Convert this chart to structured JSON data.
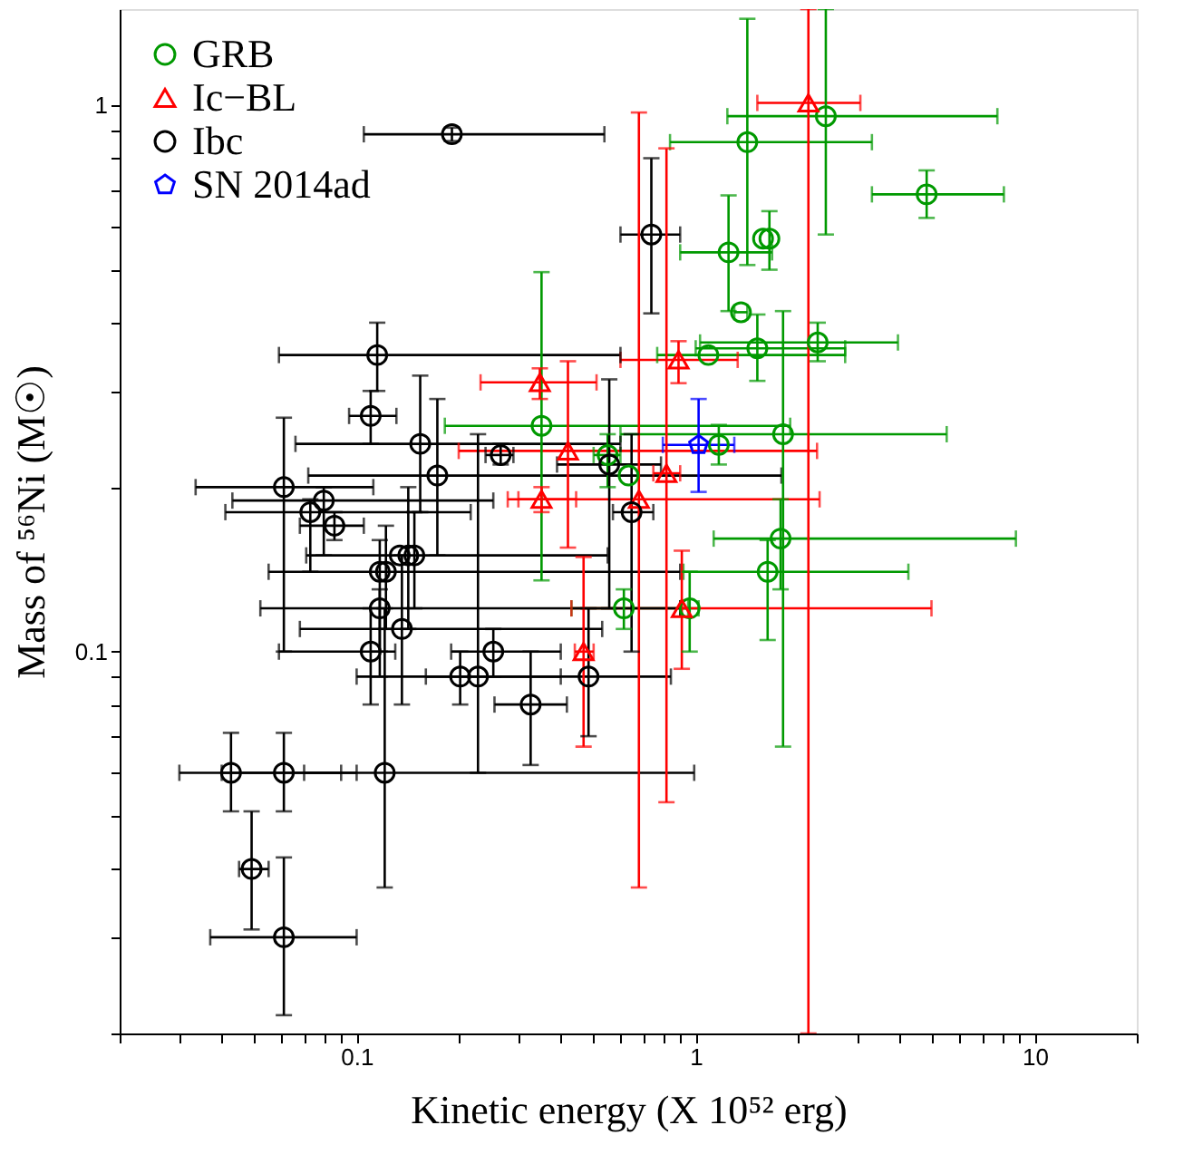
{
  "chart_data": {
    "type": "scatter",
    "xlabel": "Kinetic energy (X 10⁵² erg)",
    "ylabel": "Mass of ⁵⁶Ni (M☉)",
    "log": "xy",
    "grid": false,
    "legend": "top left",
    "xlim": [
      0.02,
      20
    ],
    "ylim": [
      0.02,
      1.5
    ],
    "xticks": [
      {
        "value": 0.02,
        "label": null
      },
      {
        "value": 0.03,
        "label": null
      },
      {
        "value": 0.04,
        "label": null
      },
      {
        "value": 0.05,
        "label": null
      },
      {
        "value": 0.06,
        "label": null
      },
      {
        "value": 0.07,
        "label": null
      },
      {
        "value": 0.08,
        "label": null
      },
      {
        "value": 0.09,
        "label": null
      },
      0.1,
      {
        "value": 0.2,
        "label": null
      },
      {
        "value": 0.3,
        "label": null
      },
      {
        "value": 0.4,
        "label": null
      },
      {
        "value": 0.5,
        "label": null
      },
      {
        "value": 0.6,
        "label": null
      },
      {
        "value": 0.7,
        "label": null
      },
      {
        "value": 0.8,
        "label": null
      },
      {
        "value": 0.9,
        "label": null
      },
      1,
      {
        "value": 2,
        "label": null
      },
      {
        "value": 3,
        "label": null
      },
      {
        "value": 4,
        "label": null
      },
      {
        "value": 5,
        "label": null
      },
      {
        "value": 6,
        "label": null
      },
      {
        "value": 7,
        "label": null
      },
      {
        "value": 8,
        "label": null
      },
      {
        "value": 9,
        "label": null
      },
      10,
      {
        "value": 20,
        "label": null
      }
    ],
    "yticks": [
      {
        "value": 0.02,
        "label": null
      },
      {
        "value": 0.03,
        "label": null
      },
      {
        "value": 0.04,
        "label": null
      },
      {
        "value": 0.05,
        "label": null
      },
      {
        "value": 0.06,
        "label": null
      },
      {
        "value": 0.07,
        "label": null
      },
      {
        "value": 0.08,
        "label": null
      },
      {
        "value": 0.09,
        "label": null
      },
      0.1,
      {
        "value": 0.2,
        "label": null
      },
      {
        "value": 0.3,
        "label": null
      },
      {
        "value": 0.4,
        "label": null
      },
      {
        "value": 0.5,
        "label": null
      },
      {
        "value": 0.6,
        "label": null
      },
      {
        "value": 0.7,
        "label": null
      },
      {
        "value": 0.8,
        "label": null
      },
      {
        "value": 0.9,
        "label": null
      },
      1
    ],
    "series": [
      {
        "name": "GRB",
        "color": "#009900",
        "marker": "circle",
        "x": [
          2.42,
          1.42,
          4.8,
          1.25,
          1.58,
          1.65,
          1.36,
          1.09,
          1.52,
          2.29,
          0.351,
          1.81,
          1.17,
          0.55,
          0.634,
          1.78,
          1.63,
          0.614,
          0.96
        ],
        "values": [
          0.955,
          0.856,
          0.687,
          0.538,
          0.57,
          0.57,
          0.418,
          0.349,
          0.359,
          0.368,
          0.259,
          0.25,
          0.239,
          0.229,
          0.21,
          0.161,
          0.14,
          0.12,
          0.12
        ],
        "xerrors": [
          [
            1.24,
            7.76
          ],
          [
            0.84,
            3.31
          ],
          [
            3.31,
            8.11
          ],
          [
            0.9,
            1.68
          ],
          null,
          null,
          [
            1.3,
            1.42
          ],
          [
            0.77,
            2.76
          ],
          [
            1.0,
            2.76
          ],
          [
            1.03,
            3.95
          ],
          [
            0.182,
            1.9
          ],
          [
            0.6,
            5.5
          ],
          null,
          [
            0.5,
            0.6
          ],
          null,
          [
            1.13,
            8.8
          ],
          [
            0.92,
            4.24
          ],
          [
            0.43,
            0.95
          ],
          [
            0.9,
            1.02
          ]
        ],
        "errors": [
          [
            0.58,
            1.5
          ],
          [
            0.51,
            1.44
          ],
          [
            0.622,
            0.76
          ],
          [
            0.42,
            0.684
          ],
          null,
          [
            0.5,
            0.64
          ],
          null,
          null,
          [
            0.313,
            0.414
          ],
          [
            0.34,
            0.4
          ],
          [
            0.135,
            0.495
          ],
          [
            0.067,
            0.42
          ],
          [
            0.22,
            0.26
          ],
          [
            0.2,
            0.25
          ],
          null,
          [
            0.13,
            0.19
          ],
          [
            0.105,
            0.16
          ],
          [
            0.11,
            0.13
          ],
          [
            0.1,
            0.14
          ]
        ]
      },
      {
        "name": "Ic−BL",
        "color": "#ff0000",
        "marker": "triangle",
        "x": [
          2.15,
          0.347,
          0.42,
          0.351,
          0.89,
          0.82,
          0.68,
          0.467,
          0.91
        ],
        "values": [
          1.01,
          0.311,
          0.233,
          0.19,
          0.342,
          0.212,
          0.19,
          0.1,
          0.12
        ],
        "xerrors": [
          [
            1.52,
            3.06
          ],
          [
            0.232,
            0.51
          ],
          [
            0.2,
            2.28
          ],
          [
            0.279,
            0.444
          ],
          [
            0.6,
            1.33
          ],
          [
            0.75,
            0.9
          ],
          [
            0.3,
            2.32
          ],
          [
            0.44,
            0.5
          ],
          [
            0.43,
            4.96
          ]
        ],
        "errors": [
          [
            0.02,
            1.5
          ],
          [
            0.29,
            0.33
          ],
          [
            0.155,
            0.34
          ],
          [
            0.18,
            0.2
          ],
          [
            0.31,
            0.37
          ],
          [
            0.053,
            0.834
          ],
          [
            0.037,
            0.97
          ],
          [
            0.067,
            0.149
          ],
          [
            0.093,
            0.153
          ]
        ]
      },
      {
        "name": "Ibc",
        "color": "#000000",
        "marker": "circle",
        "x": [
          0.191,
          0.74,
          0.115,
          0.11,
          0.154,
          0.266,
          0.173,
          0.061,
          0.08,
          0.073,
          0.086,
          0.556,
          0.647,
          0.134,
          0.142,
          0.148,
          0.117,
          0.122,
          0.117,
          0.136,
          0.11,
          0.253,
          0.202,
          0.228,
          0.483,
          0.326,
          0.0426,
          0.061,
          0.121,
          0.049,
          0.061
        ],
        "values": [
          0.885,
          0.58,
          0.349,
          0.27,
          0.24,
          0.229,
          0.21,
          0.2,
          0.189,
          0.18,
          0.17,
          0.22,
          0.18,
          0.15,
          0.15,
          0.15,
          0.14,
          0.14,
          0.12,
          0.11,
          0.1,
          0.1,
          0.09,
          0.09,
          0.09,
          0.08,
          0.06,
          0.06,
          0.06,
          0.04,
          0.03
        ],
        "xerrors": [
          [
            0.105,
            0.538
          ],
          [
            0.6,
            0.9
          ],
          [
            0.059,
            0.6
          ],
          [
            0.095,
            0.131
          ],
          [
            0.066,
            0.6
          ],
          [
            0.24,
            0.29
          ],
          [
            0.072,
            1.79
          ],
          [
            0.0335,
            0.112
          ],
          [
            0.043,
            0.253
          ],
          [
            0.041,
            0.217
          ],
          [
            0.068,
            0.105
          ],
          [
            0.39,
            0.79
          ],
          [
            0.57,
            0.75
          ],
          [
            0.071,
            0.55
          ],
          null,
          null,
          [
            0.055,
            0.9
          ],
          null,
          [
            0.052,
            0.9
          ],
          [
            0.068,
            0.53
          ],
          [
            0.059,
            0.13
          ],
          [
            0.19,
            0.4
          ],
          [
            0.16,
            0.4
          ],
          null,
          [
            0.1,
            0.845
          ],
          [
            0.255,
            0.417
          ],
          [
            0.03,
            0.09
          ],
          [
            0.04,
            0.1
          ],
          [
            0.07,
            0.99
          ],
          [
            0.045,
            0.055
          ],
          [
            0.037,
            0.1
          ]
        ],
        "errors": [
          [
            0.86,
            0.91
          ],
          [
            0.416,
            0.8
          ],
          [
            0.3,
            0.4
          ],
          [
            0.24,
            0.3
          ],
          [
            0.18,
            0.32
          ],
          [
            0.22,
            0.24
          ],
          [
            0.15,
            0.29
          ],
          [
            0.1,
            0.268
          ],
          [
            0.15,
            0.2
          ],
          [
            0.14,
            0.19
          ],
          [
            0.16,
            0.18
          ],
          [
            0.12,
            0.315
          ],
          [
            0.1,
            0.25
          ],
          null,
          [
            0.11,
            0.2
          ],
          [
            0.12,
            0.18
          ],
          [
            0.1,
            0.16
          ],
          [
            0.11,
            0.17
          ],
          [
            0.09,
            0.13
          ],
          [
            0.08,
            0.15
          ],
          [
            0.08,
            0.12
          ],
          [
            0.09,
            0.11
          ],
          [
            0.08,
            0.1
          ],
          [
            0.06,
            0.25
          ],
          [
            0.07,
            0.12
          ],
          [
            0.062,
            0.1
          ],
          [
            0.051,
            0.071
          ],
          [
            0.051,
            0.071
          ],
          [
            0.037,
            0.12
          ],
          [
            0.031,
            0.051
          ],
          [
            0.0216,
            0.042
          ]
        ]
      },
      {
        "name": "SN 2014ad",
        "color": "#0000ff",
        "x": [
          1.02
        ],
        "values": [
          0.239
        ],
        "xerrors": [
          [
            0.8,
            1.3
          ]
        ],
        "errors": [
          [
            0.196,
            0.29
          ]
        ]
      }
    ]
  }
}
